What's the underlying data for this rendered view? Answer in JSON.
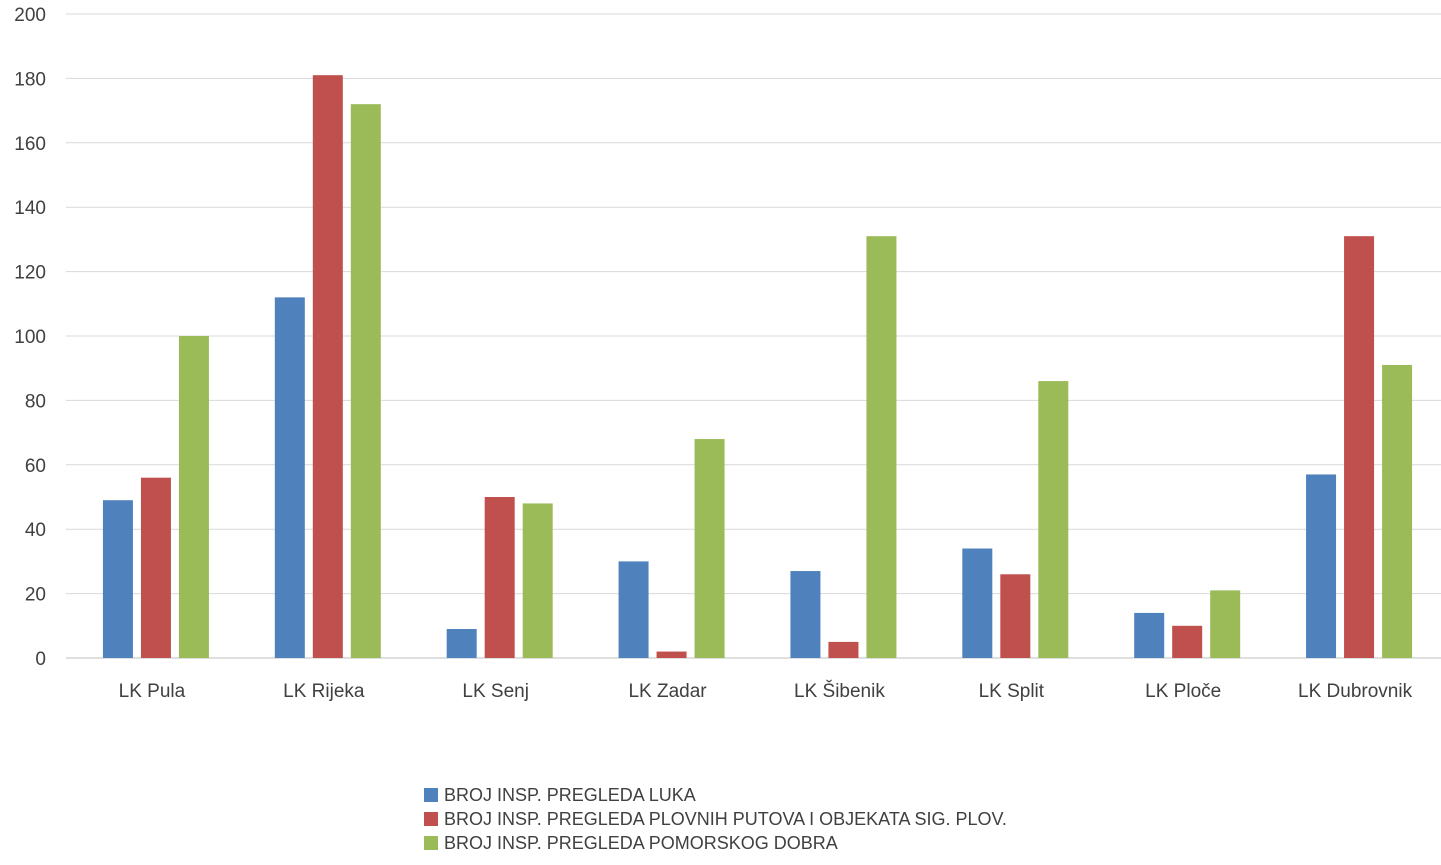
{
  "chart_data": {
    "type": "bar",
    "categories": [
      "LK Pula",
      "LK Rijeka",
      "LK Senj",
      "LK Zadar",
      "LK Šibenik",
      "LK Split",
      "LK Ploče",
      "LK Dubrovnik"
    ],
    "series": [
      {
        "name": "BROJ INSP. PREGLEDA LUKA",
        "color": "#4f81bd",
        "values": [
          49,
          112,
          9,
          30,
          27,
          34,
          14,
          57
        ]
      },
      {
        "name": "BROJ INSP. PREGLEDA PLOVNIH PUTOVA I OBJEKATA SIG. PLOV.",
        "color": "#c0504d",
        "values": [
          56,
          181,
          50,
          2,
          5,
          26,
          10,
          131
        ]
      },
      {
        "name": "BROJ INSP. PREGLEDA POMORSKOG DOBRA",
        "color": "#9bbb59",
        "values": [
          100,
          172,
          48,
          68,
          131,
          86,
          21,
          91
        ]
      }
    ],
    "ylim": [
      0,
      200
    ],
    "yticks": [
      "0",
      "20",
      "40",
      "60",
      "80",
      "100",
      "120",
      "140",
      "160",
      "180",
      "200"
    ],
    "grid": true,
    "legend_position": "bottom"
  }
}
